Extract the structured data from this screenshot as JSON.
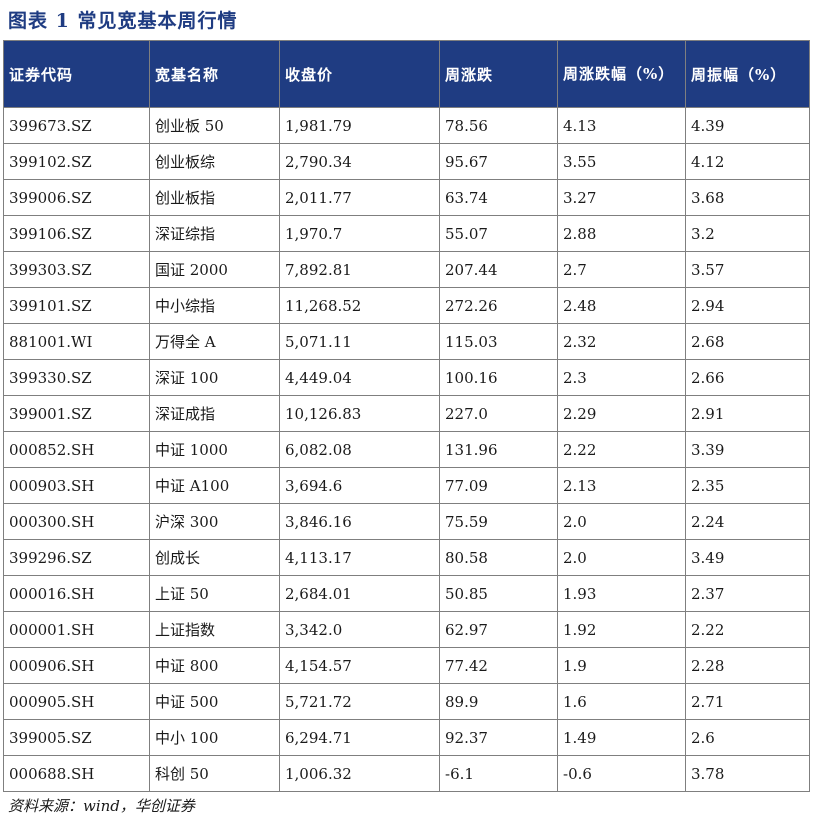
{
  "title": "图表 1  常见宽基本周行情",
  "headers": [
    "证券代码",
    "宽基名称",
    "收盘价",
    "周涨跌",
    "周涨跌幅（%）",
    "周振幅（%）"
  ],
  "rows": [
    [
      "399673.SZ",
      "创业板 50",
      "1,981.79",
      "78.56",
      "4.13",
      "4.39"
    ],
    [
      "399102.SZ",
      "创业板综",
      "2,790.34",
      "95.67",
      "3.55",
      "4.12"
    ],
    [
      "399006.SZ",
      "创业板指",
      "2,011.77",
      "63.74",
      "3.27",
      "3.68"
    ],
    [
      "399106.SZ",
      "深证综指",
      "1,970.7",
      "55.07",
      "2.88",
      "3.2"
    ],
    [
      "399303.SZ",
      "国证 2000",
      "7,892.81",
      "207.44",
      "2.7",
      "3.57"
    ],
    [
      "399101.SZ",
      "中小综指",
      "11,268.52",
      "272.26",
      "2.48",
      "2.94"
    ],
    [
      "881001.WI",
      "万得全 A",
      "5,071.11",
      "115.03",
      "2.32",
      "2.68"
    ],
    [
      "399330.SZ",
      "深证 100",
      "4,449.04",
      "100.16",
      "2.3",
      "2.66"
    ],
    [
      "399001.SZ",
      "深证成指",
      "10,126.83",
      "227.0",
      "2.29",
      "2.91"
    ],
    [
      "000852.SH",
      "中证 1000",
      "6,082.08",
      "131.96",
      "2.22",
      "3.39"
    ],
    [
      "000903.SH",
      "中证 A100",
      "3,694.6",
      "77.09",
      "2.13",
      "2.35"
    ],
    [
      "000300.SH",
      "沪深 300",
      "3,846.16",
      "75.59",
      "2.0",
      "2.24"
    ],
    [
      "399296.SZ",
      "创成长",
      "4,113.17",
      "80.58",
      "2.0",
      "3.49"
    ],
    [
      "000016.SH",
      "上证 50",
      "2,684.01",
      "50.85",
      "1.93",
      "2.37"
    ],
    [
      "000001.SH",
      "上证指数",
      "3,342.0",
      "62.97",
      "1.92",
      "2.22"
    ],
    [
      "000906.SH",
      "中证 800",
      "4,154.57",
      "77.42",
      "1.9",
      "2.28"
    ],
    [
      "000905.SH",
      "中证 500",
      "5,721.72",
      "89.9",
      "1.6",
      "2.71"
    ],
    [
      "399005.SZ",
      "中小 100",
      "6,294.71",
      "92.37",
      "1.49",
      "2.6"
    ],
    [
      "000688.SH",
      "科创 50",
      "1,006.32",
      "-6.1",
      "-0.6",
      "3.78"
    ]
  ],
  "source": "资料来源：wind，华创证券"
}
